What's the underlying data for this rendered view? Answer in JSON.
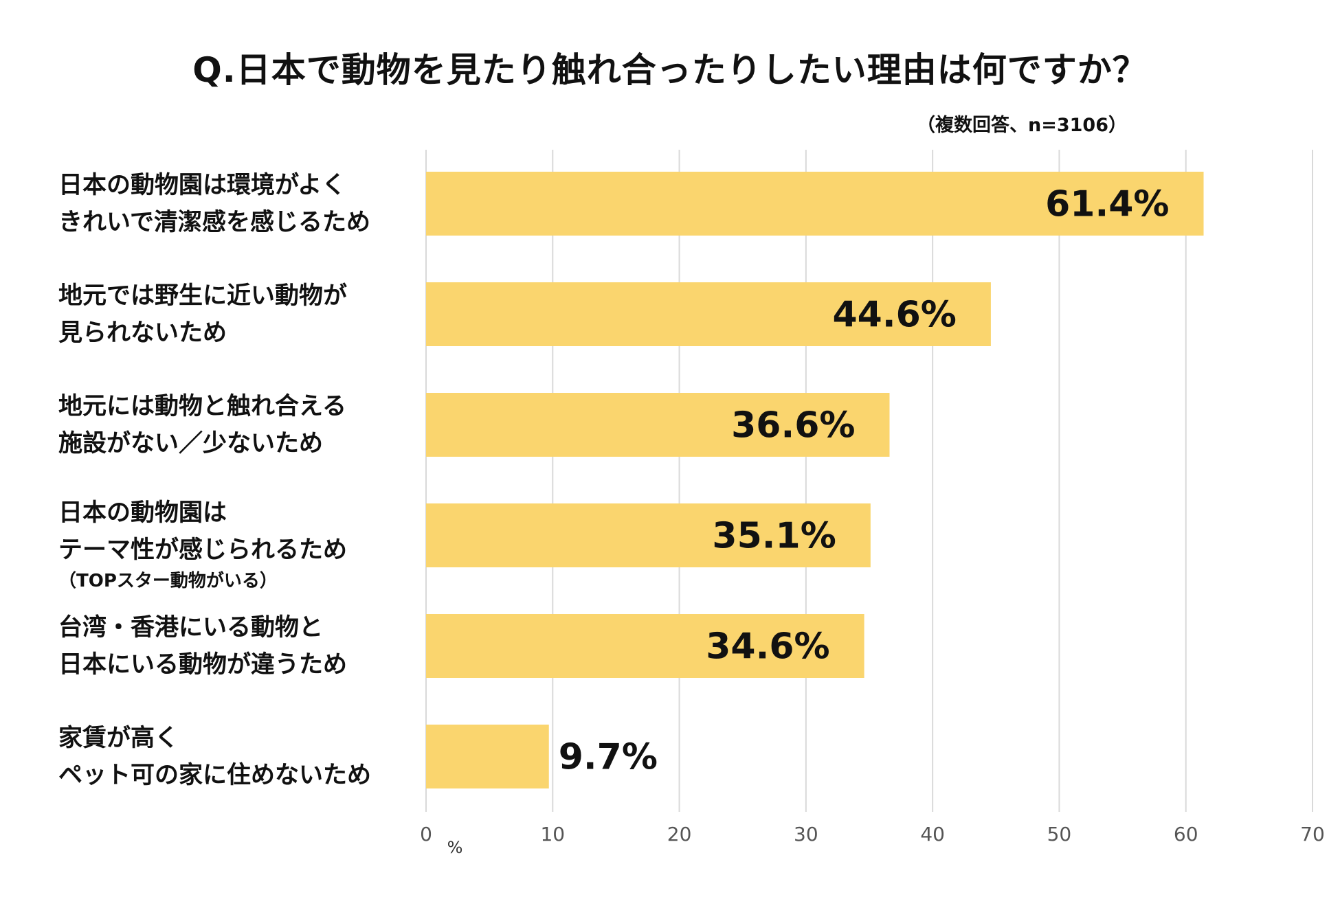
{
  "chart_data": {
    "type": "bar",
    "orientation": "horizontal",
    "title": "Q.日本で動物を見たり触れ合ったりしたい理由は何ですか？",
    "subtitle": "（複数回答、n=3106）",
    "xlabel": "%",
    "xlim": [
      0,
      70
    ],
    "xticks": [
      0,
      10,
      20,
      30,
      40,
      50,
      60,
      70
    ],
    "grid": true,
    "bar_color": "#FAD56E",
    "grid_color": "#D9D9D9",
    "categories": [
      {
        "lines": [
          "日本の動物園は環境がよく",
          "きれいで清潔感を感じるため"
        ]
      },
      {
        "lines": [
          "地元では野生に近い動物が",
          "見られないため"
        ]
      },
      {
        "lines": [
          "地元には動物と触れ合える",
          "施設がない／少ないため"
        ]
      },
      {
        "lines": [
          "日本の動物園は",
          "テーマ性が感じられるため"
        ],
        "note": "（TOPスター動物がいる）"
      },
      {
        "lines": [
          "台湾・香港にいる動物と",
          "日本にいる動物が違うため"
        ]
      },
      {
        "lines": [
          "家賃が高く",
          "ペット可の家に住めないため"
        ]
      }
    ],
    "values": [
      61.4,
      44.6,
      36.6,
      35.1,
      34.6,
      9.7
    ],
    "data_labels": [
      "61.4%",
      "44.6%",
      "36.6%",
      "35.1%",
      "34.6%",
      "9.7%"
    ]
  }
}
